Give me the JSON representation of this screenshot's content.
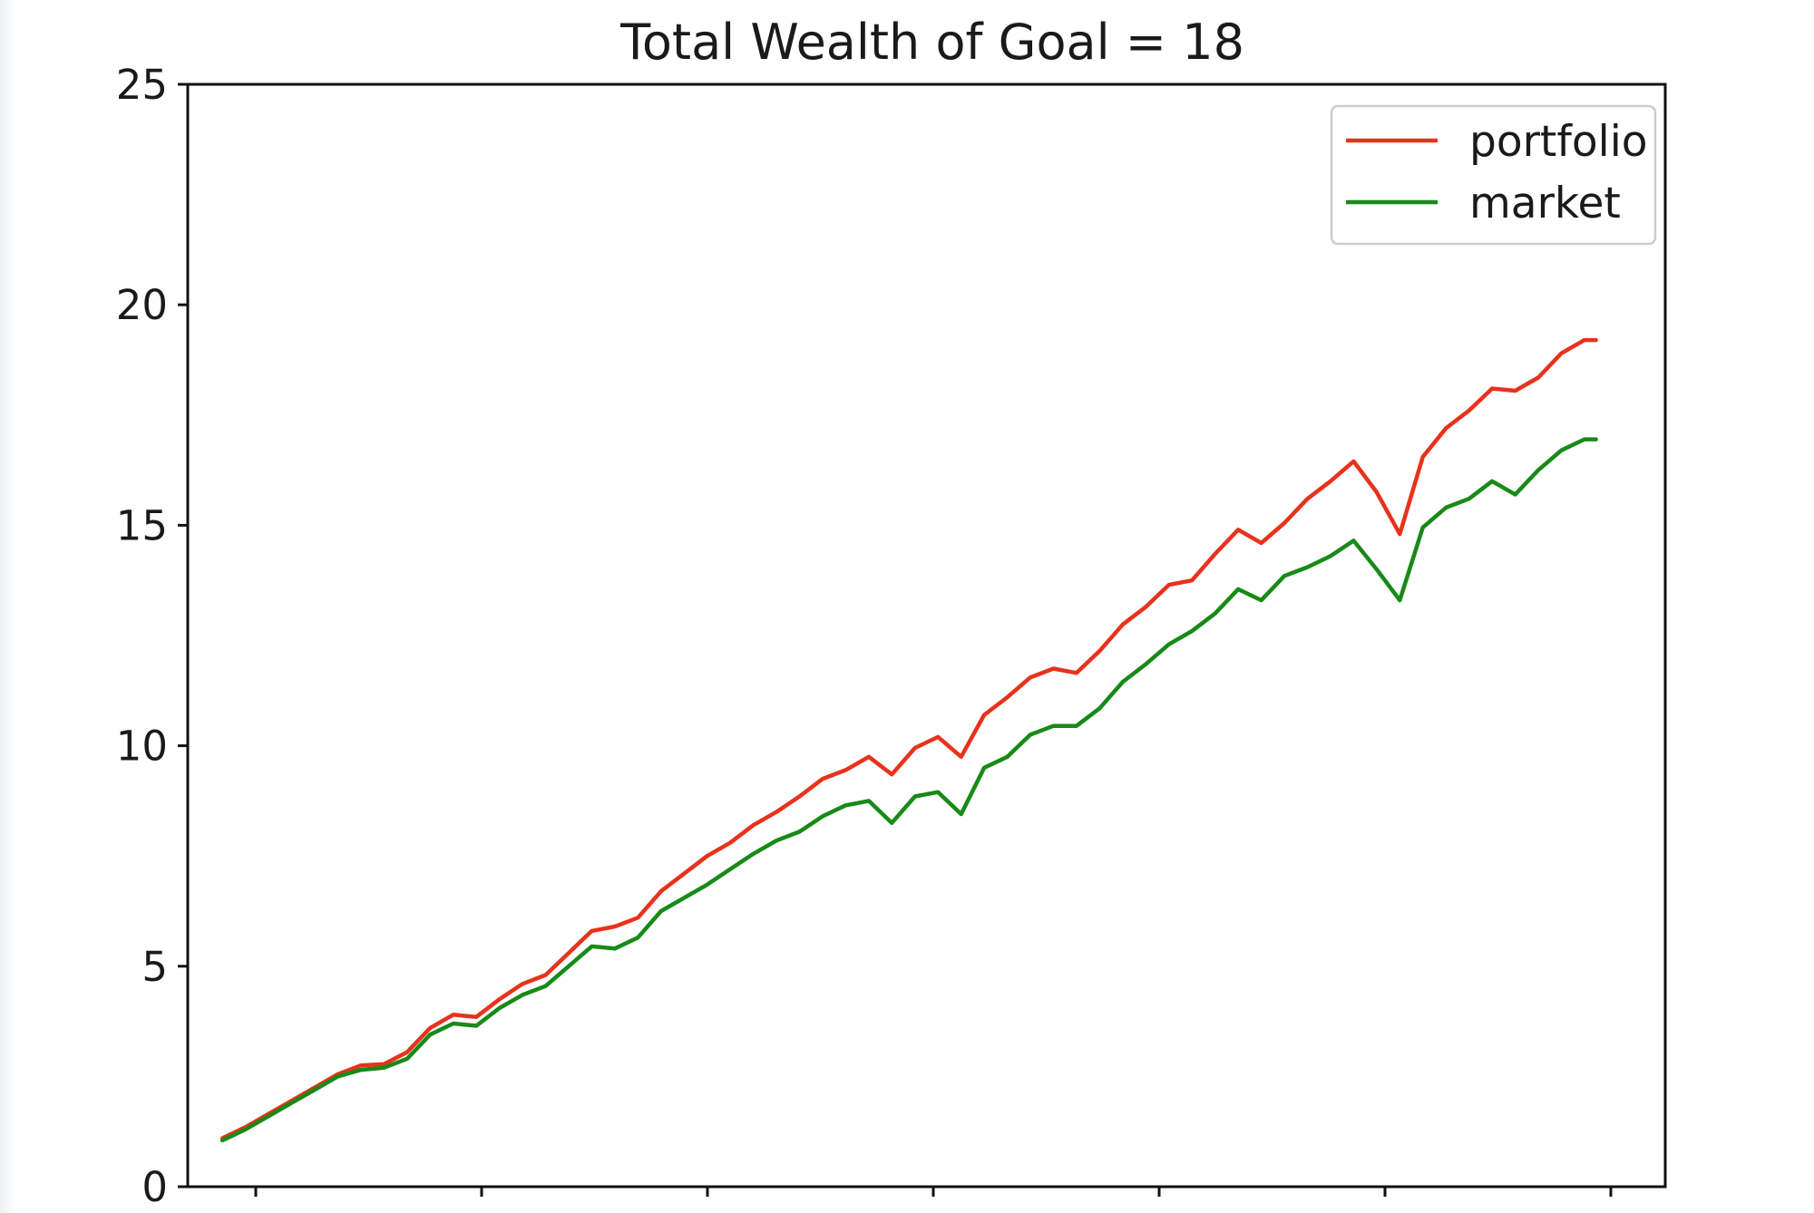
{
  "chart_data": {
    "type": "line",
    "title": "Total Wealth of Goal = 18",
    "xlabel": "",
    "ylabel": "",
    "ylim": [
      0,
      25
    ],
    "yticks": [
      "0",
      "5",
      "10",
      "15",
      "20",
      "25"
    ],
    "xlim": [
      -3.0,
      125.0
    ],
    "xticks_count": 7,
    "grid": false,
    "legend": "top-right",
    "x": [
      0,
      2,
      4,
      6,
      8,
      10,
      12,
      14,
      16,
      18,
      20,
      22,
      24,
      26,
      28,
      30,
      32,
      34,
      36,
      38,
      40,
      42,
      44,
      46,
      48,
      50,
      52,
      54,
      56,
      58,
      60,
      62,
      64,
      66,
      68,
      70,
      72,
      74,
      76,
      78,
      80,
      82,
      84,
      86,
      88,
      90,
      92,
      94,
      96,
      98,
      100,
      102,
      104,
      106,
      108,
      110,
      112,
      114,
      116,
      118,
      119
    ],
    "series": [
      {
        "name": "portfolio",
        "color": "#e8321c",
        "values": [
          1.1,
          1.35,
          1.65,
          1.95,
          2.25,
          2.55,
          2.75,
          2.78,
          3.05,
          3.6,
          3.9,
          3.85,
          4.25,
          4.6,
          4.8,
          5.3,
          5.8,
          5.9,
          6.1,
          6.7,
          7.1,
          7.5,
          7.8,
          8.2,
          8.5,
          8.85,
          9.25,
          9.45,
          9.75,
          9.35,
          9.95,
          10.2,
          9.75,
          10.7,
          11.1,
          11.55,
          11.75,
          11.65,
          12.15,
          12.75,
          13.15,
          13.65,
          13.75,
          14.35,
          14.9,
          14.6,
          15.05,
          15.6,
          16.0,
          16.45,
          15.75,
          14.8,
          16.55,
          17.2,
          17.6,
          18.1,
          18.05,
          18.35,
          18.9,
          19.2,
          19.2
        ]
      },
      {
        "name": "market",
        "color": "#178a17",
        "values": [
          1.05,
          1.3,
          1.6,
          1.9,
          2.2,
          2.5,
          2.65,
          2.7,
          2.9,
          3.45,
          3.7,
          3.65,
          4.05,
          4.35,
          4.55,
          5.0,
          5.45,
          5.4,
          5.65,
          6.25,
          6.55,
          6.85,
          7.2,
          7.55,
          7.85,
          8.05,
          8.4,
          8.65,
          8.75,
          8.25,
          8.85,
          8.95,
          8.45,
          9.5,
          9.75,
          10.25,
          10.45,
          10.45,
          10.85,
          11.45,
          11.85,
          12.3,
          12.6,
          13.0,
          13.55,
          13.3,
          13.85,
          14.05,
          14.3,
          14.65,
          14.0,
          13.3,
          14.95,
          15.4,
          15.6,
          16.0,
          15.7,
          16.25,
          16.7,
          16.95,
          16.95
        ]
      }
    ]
  }
}
